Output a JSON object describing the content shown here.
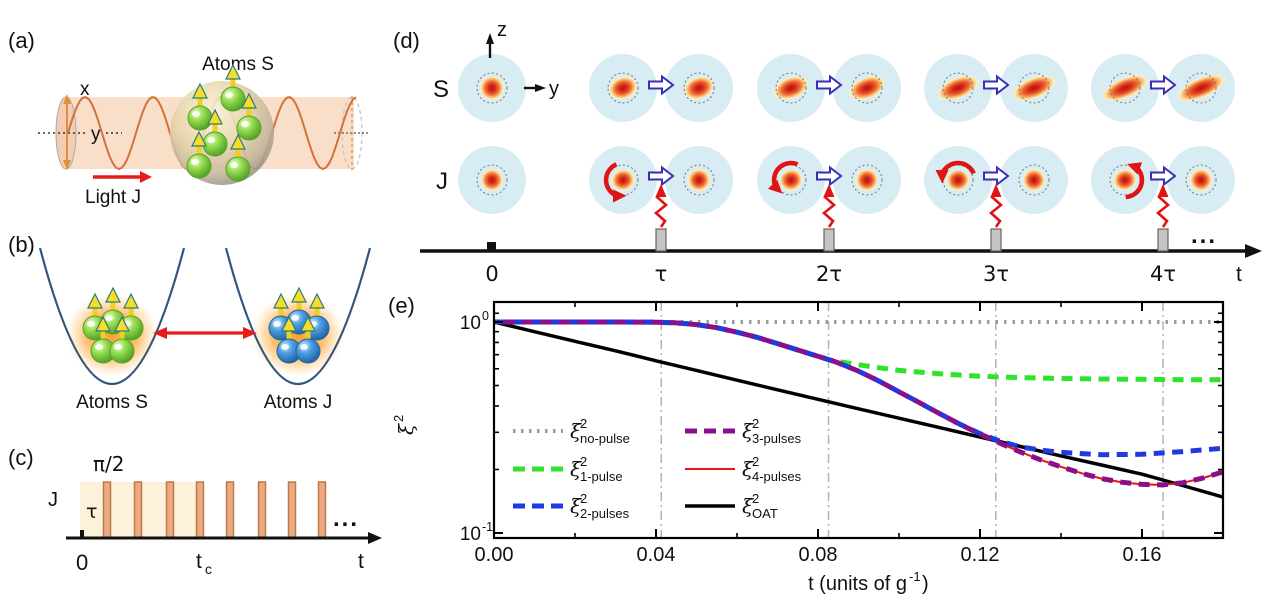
{
  "panels": {
    "a": {
      "label": "(a)",
      "title": "Atoms S",
      "x_axis": "x",
      "y_axis": "y",
      "light_label": "Light J"
    },
    "b": {
      "label": "(b)",
      "well_left_label": "Atoms S",
      "well_right_label": "Atoms J"
    },
    "c": {
      "label": "(c)",
      "pulse_area_label": "π/2",
      "channel_label": "J",
      "tau_label": "τ",
      "origin_label": "0",
      "tc_base": "t",
      "tc_sub": "c",
      "axis_end_label": "t",
      "ellipsis": "...",
      "pulse_count": 8
    },
    "d": {
      "label": "(d)",
      "row_s_label": "S",
      "row_j_label": "J",
      "z_axis": "z",
      "y_axis": "y",
      "time_ticks": [
        "0",
        "τ",
        "2τ",
        "3τ",
        "4τ"
      ],
      "axis_end_label": "t",
      "ellipsis": "...",
      "pulse_group_count": 4
    },
    "e": {
      "label": "(e)"
    }
  },
  "colors": {
    "accent_red": "#e81b1b",
    "bloch_circle_fill": "#d8ecf4",
    "pulse_bar_fill": "#edaa80",
    "pulse_bar_border": "#bb7a4e",
    "pulse_shade_fill": "#fcf2d9",
    "timeline_bar_gray": "#c4c4c4",
    "block_arrow_border": "#3a2fb4",
    "wave_orange": "#d4713a",
    "well_blue": "#33567e",
    "grid_gray": "#b3b3b3"
  },
  "chart_data": {
    "type": "line",
    "xlabel_parts": {
      "pre": "t (units of g",
      "sup": "-1",
      "post": ")"
    },
    "ylabel_parts": {
      "sym": "ξ",
      "sup": "2"
    },
    "xlim": [
      0,
      0.18
    ],
    "ylim": [
      0.095,
      1.24
    ],
    "yscale": "log",
    "x_ticks": [
      {
        "v": 0.0,
        "label": "0.00"
      },
      {
        "v": 0.04,
        "label": "0.04"
      },
      {
        "v": 0.08,
        "label": "0.08"
      },
      {
        "v": 0.12,
        "label": "0.12"
      },
      {
        "v": 0.16,
        "label": "0.16"
      }
    ],
    "x_minor_ticks": [
      0.02,
      0.06,
      0.1,
      0.14
    ],
    "y_ticks": [
      {
        "v": 1.0,
        "base": "10",
        "exp": "0"
      },
      {
        "v": 0.1,
        "base": "10",
        "exp": "-1"
      }
    ],
    "y_minor_ticks": [
      1.1,
      0.9,
      0.8,
      0.7,
      0.6,
      0.5,
      0.4,
      0.3,
      0.2
    ],
    "grid_x_dashdot": [
      0.0413,
      0.0826,
      0.1239,
      0.1652
    ],
    "legend_position": "inside-left-bottom",
    "series": [
      {
        "id": "no_pulse",
        "legend": {
          "sym": "ξ",
          "sup": "2",
          "sub": "no-pulse"
        },
        "color": "#9b9b9b",
        "style": "dotted",
        "lw": 4,
        "points": [
          [
            0,
            1
          ],
          [
            0.18,
            1
          ]
        ]
      },
      {
        "id": "one_pulse",
        "legend": {
          "sym": "ξ",
          "sup": "2",
          "sub": "1-pulse"
        },
        "color": "#2ee32a",
        "style": "dashed",
        "lw": 5,
        "points": [
          [
            0,
            1
          ],
          [
            0.01,
            1
          ],
          [
            0.02,
            1
          ],
          [
            0.03,
            1
          ],
          [
            0.04,
            0.998
          ],
          [
            0.045,
            0.99
          ],
          [
            0.05,
            0.972
          ],
          [
            0.055,
            0.94
          ],
          [
            0.06,
            0.895
          ],
          [
            0.065,
            0.845
          ],
          [
            0.07,
            0.79
          ],
          [
            0.075,
            0.737
          ],
          [
            0.08,
            0.688
          ],
          [
            0.083,
            0.66
          ],
          [
            0.09,
            0.627
          ],
          [
            0.095,
            0.607
          ],
          [
            0.1,
            0.59
          ],
          [
            0.11,
            0.568
          ],
          [
            0.12,
            0.553
          ],
          [
            0.13,
            0.545
          ],
          [
            0.14,
            0.54
          ],
          [
            0.15,
            0.537
          ],
          [
            0.16,
            0.535
          ],
          [
            0.17,
            0.533
          ],
          [
            0.18,
            0.532
          ]
        ]
      },
      {
        "id": "two_pulses",
        "legend": {
          "sym": "ξ",
          "sup": "2",
          "sub": "2-pulses"
        },
        "color": "#1f3be0",
        "style": "dashed",
        "lw": 5,
        "points": [
          [
            0,
            1
          ],
          [
            0.01,
            1
          ],
          [
            0.02,
            1
          ],
          [
            0.03,
            1
          ],
          [
            0.04,
            0.998
          ],
          [
            0.045,
            0.99
          ],
          [
            0.05,
            0.972
          ],
          [
            0.055,
            0.94
          ],
          [
            0.06,
            0.895
          ],
          [
            0.065,
            0.845
          ],
          [
            0.07,
            0.79
          ],
          [
            0.075,
            0.737
          ],
          [
            0.08,
            0.688
          ],
          [
            0.083,
            0.66
          ],
          [
            0.085,
            0.64
          ],
          [
            0.09,
            0.585
          ],
          [
            0.095,
            0.525
          ],
          [
            0.1,
            0.467
          ],
          [
            0.105,
            0.415
          ],
          [
            0.11,
            0.368
          ],
          [
            0.115,
            0.328
          ],
          [
            0.12,
            0.296
          ],
          [
            0.125,
            0.272
          ],
          [
            0.13,
            0.256
          ],
          [
            0.135,
            0.247
          ],
          [
            0.14,
            0.241
          ],
          [
            0.15,
            0.235
          ],
          [
            0.16,
            0.236
          ],
          [
            0.17,
            0.243
          ],
          [
            0.18,
            0.252
          ]
        ]
      },
      {
        "id": "three_pulses",
        "legend": {
          "sym": "ξ",
          "sup": "2",
          "sub": "3-pulses"
        },
        "color": "#8b0f8b",
        "style": "dashed",
        "lw": 5,
        "points": [
          [
            0,
            1
          ],
          [
            0.01,
            1
          ],
          [
            0.02,
            1
          ],
          [
            0.03,
            1
          ],
          [
            0.04,
            0.998
          ],
          [
            0.045,
            0.99
          ],
          [
            0.05,
            0.972
          ],
          [
            0.055,
            0.94
          ],
          [
            0.06,
            0.895
          ],
          [
            0.065,
            0.845
          ],
          [
            0.07,
            0.79
          ],
          [
            0.075,
            0.737
          ],
          [
            0.08,
            0.688
          ],
          [
            0.083,
            0.66
          ],
          [
            0.085,
            0.64
          ],
          [
            0.09,
            0.585
          ],
          [
            0.095,
            0.525
          ],
          [
            0.1,
            0.467
          ],
          [
            0.105,
            0.415
          ],
          [
            0.11,
            0.368
          ],
          [
            0.115,
            0.328
          ],
          [
            0.12,
            0.295
          ],
          [
            0.125,
            0.266
          ],
          [
            0.13,
            0.242
          ],
          [
            0.135,
            0.222
          ],
          [
            0.14,
            0.206
          ],
          [
            0.145,
            0.192
          ],
          [
            0.15,
            0.181
          ],
          [
            0.155,
            0.174
          ],
          [
            0.16,
            0.17
          ],
          [
            0.165,
            0.169
          ],
          [
            0.17,
            0.173
          ],
          [
            0.175,
            0.182
          ],
          [
            0.18,
            0.195
          ]
        ]
      },
      {
        "id": "four_pulses",
        "legend": {
          "sym": "ξ",
          "sup": "2",
          "sub": "4-pulses"
        },
        "color": "#e81515",
        "style": "solid",
        "lw": 2,
        "points": [
          [
            0,
            1
          ],
          [
            0.01,
            1
          ],
          [
            0.02,
            1
          ],
          [
            0.03,
            1
          ],
          [
            0.04,
            0.998
          ],
          [
            0.045,
            0.99
          ],
          [
            0.05,
            0.972
          ],
          [
            0.055,
            0.94
          ],
          [
            0.06,
            0.895
          ],
          [
            0.065,
            0.845
          ],
          [
            0.07,
            0.79
          ],
          [
            0.075,
            0.737
          ],
          [
            0.08,
            0.688
          ],
          [
            0.083,
            0.66
          ],
          [
            0.085,
            0.64
          ],
          [
            0.09,
            0.585
          ],
          [
            0.095,
            0.525
          ],
          [
            0.1,
            0.467
          ],
          [
            0.105,
            0.415
          ],
          [
            0.11,
            0.368
          ],
          [
            0.115,
            0.328
          ],
          [
            0.12,
            0.295
          ],
          [
            0.125,
            0.266
          ],
          [
            0.13,
            0.242
          ],
          [
            0.135,
            0.222
          ],
          [
            0.14,
            0.206
          ],
          [
            0.145,
            0.192
          ],
          [
            0.15,
            0.181
          ],
          [
            0.155,
            0.174
          ],
          [
            0.16,
            0.17
          ],
          [
            0.165,
            0.169
          ],
          [
            0.17,
            0.173
          ],
          [
            0.175,
            0.182
          ],
          [
            0.18,
            0.195
          ]
        ]
      },
      {
        "id": "oat",
        "legend": {
          "sym": "ξ",
          "sup": "2",
          "sub": "OAT"
        },
        "color": "#000000",
        "style": "solid",
        "lw": 3.5,
        "points": [
          [
            0,
            1
          ],
          [
            0.01,
            0.9
          ],
          [
            0.02,
            0.81
          ],
          [
            0.03,
            0.73
          ],
          [
            0.04,
            0.655
          ],
          [
            0.05,
            0.59
          ],
          [
            0.06,
            0.53
          ],
          [
            0.07,
            0.477
          ],
          [
            0.08,
            0.43
          ],
          [
            0.09,
            0.388
          ],
          [
            0.1,
            0.35
          ],
          [
            0.11,
            0.316
          ],
          [
            0.12,
            0.285
          ],
          [
            0.13,
            0.257
          ],
          [
            0.14,
            0.232
          ],
          [
            0.15,
            0.21
          ],
          [
            0.16,
            0.19
          ],
          [
            0.17,
            0.168
          ],
          [
            0.18,
            0.148
          ]
        ]
      }
    ]
  }
}
